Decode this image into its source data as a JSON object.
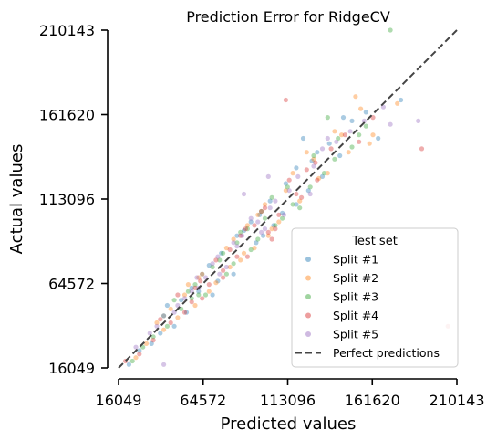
{
  "chart_data": {
    "type": "scatter",
    "title": "Prediction Error for RidgeCV",
    "xlabel": "Predicted values",
    "ylabel": "Actual values",
    "xlim": [
      16049,
      210143
    ],
    "ylim": [
      16049,
      210143
    ],
    "xticks": [
      "16049",
      "64572",
      "113096",
      "161620",
      "210143"
    ],
    "yticks": [
      "16049",
      "64572",
      "113096",
      "161620",
      "210143"
    ],
    "legend": {
      "title": "Test set",
      "placement": "lower-right",
      "entries": [
        "Split #1",
        "Split #2",
        "Split #3",
        "Split #4",
        "Split #5",
        "Perfect predictions"
      ]
    },
    "reference_line": {
      "name": "Perfect predictions",
      "style": "dashed",
      "color": "#444444",
      "points": [
        [
          16049,
          16049
        ],
        [
          210143,
          210143
        ]
      ]
    },
    "series": [
      {
        "name": "Split #1",
        "color": "#1f77b4",
        "points": [
          [
            62000,
            60000
          ],
          [
            75000,
            82000
          ],
          [
            88000,
            95000
          ],
          [
            97000,
            104000
          ],
          [
            105000,
            98000
          ],
          [
            112000,
            122000
          ],
          [
            118000,
            131000
          ],
          [
            125000,
            118000
          ],
          [
            130000,
            140000
          ],
          [
            137000,
            145000
          ],
          [
            143000,
            138000
          ],
          [
            150000,
            158000
          ],
          [
            158000,
            163000
          ],
          [
            165000,
            148000
          ],
          [
            178000,
            170000
          ],
          [
            122000,
            148000
          ],
          [
            127000,
            135000
          ],
          [
            82000,
            70000
          ],
          [
            70000,
            58000
          ],
          [
            55000,
            48000
          ],
          [
            48000,
            40000
          ],
          [
            35000,
            30000
          ],
          [
            28000,
            26000
          ],
          [
            22000,
            18000
          ],
          [
            95000,
            88000
          ],
          [
            103000,
            112000
          ],
          [
            68000,
            75000
          ],
          [
            58000,
            62000
          ],
          [
            40000,
            36000
          ],
          [
            84000,
            92000
          ],
          [
            110000,
            105000
          ],
          [
            92000,
            100000
          ],
          [
            145000,
            160000
          ],
          [
            133000,
            126000
          ],
          [
            118000,
            110000
          ],
          [
            73000,
            66000
          ],
          [
            64000,
            70000
          ],
          [
            52000,
            55000
          ],
          [
            44000,
            52000
          ],
          [
            99000,
            92000
          ]
        ]
      },
      {
        "name": "Split #2",
        "color": "#ff7f0e",
        "points": [
          [
            64000,
            70000
          ],
          [
            78000,
            85000
          ],
          [
            90000,
            98000
          ],
          [
            100000,
            110000
          ],
          [
            108000,
            100000
          ],
          [
            116000,
            128000
          ],
          [
            124000,
            140000
          ],
          [
            131000,
            125000
          ],
          [
            140000,
            152000
          ],
          [
            148000,
            140000
          ],
          [
            155000,
            165000
          ],
          [
            152000,
            172000
          ],
          [
            162000,
            150000
          ],
          [
            176000,
            168000
          ],
          [
            102000,
            92000
          ],
          [
            86000,
            78000
          ],
          [
            72000,
            65000
          ],
          [
            60000,
            52000
          ],
          [
            50000,
            45000
          ],
          [
            42000,
            38000
          ],
          [
            32000,
            30000
          ],
          [
            26000,
            22000
          ],
          [
            112000,
            118000
          ],
          [
            96000,
            104000
          ],
          [
            82000,
            90000
          ],
          [
            68000,
            60000
          ],
          [
            56000,
            64000
          ],
          [
            46000,
            50000
          ],
          [
            120000,
            112000
          ],
          [
            136000,
            128000
          ],
          [
            144000,
            150000
          ],
          [
            128000,
            136000
          ],
          [
            94000,
            85000
          ],
          [
            80000,
            74000
          ],
          [
            62000,
            68000
          ],
          [
            104000,
            96000
          ],
          [
            88000,
            82000
          ],
          [
            54000,
            58000
          ],
          [
            38000,
            42000
          ],
          [
            160000,
            145000
          ]
        ]
      },
      {
        "name": "Split #3",
        "color": "#2ca02c",
        "points": [
          [
            60000,
            64000
          ],
          [
            74000,
            78000
          ],
          [
            86000,
            94000
          ],
          [
            96000,
            90000
          ],
          [
            104000,
            114000
          ],
          [
            113000,
            120000
          ],
          [
            120000,
            108000
          ],
          [
            128000,
            138000
          ],
          [
            134000,
            128000
          ],
          [
            142000,
            148000
          ],
          [
            150000,
            143000
          ],
          [
            158000,
            155000
          ],
          [
            136000,
            160000
          ],
          [
            172000,
            210143
          ],
          [
            110000,
            102000
          ],
          [
            92000,
            84000
          ],
          [
            78000,
            70000
          ],
          [
            66000,
            58000
          ],
          [
            52000,
            50000
          ],
          [
            44000,
            40000
          ],
          [
            30000,
            28000
          ],
          [
            24000,
            20000
          ],
          [
            98000,
            106000
          ],
          [
            84000,
            88000
          ],
          [
            70000,
            74000
          ],
          [
            58000,
            56000
          ],
          [
            48000,
            55000
          ],
          [
            36000,
            34000
          ],
          [
            116000,
            110000
          ],
          [
            126000,
            120000
          ],
          [
            140000,
            136000
          ],
          [
            106000,
            98000
          ],
          [
            90000,
            96000
          ],
          [
            76000,
            82000
          ],
          [
            62000,
            58000
          ],
          [
            100000,
            102000
          ],
          [
            82000,
            76000
          ],
          [
            56000,
            60000
          ],
          [
            42000,
            46000
          ],
          [
            154000,
            150000
          ]
        ]
      },
      {
        "name": "Split #4",
        "color": "#d62728",
        "points": [
          [
            63000,
            66000
          ],
          [
            76000,
            72000
          ],
          [
            89000,
            96000
          ],
          [
            98000,
            106000
          ],
          [
            106000,
            96000
          ],
          [
            114000,
            124000
          ],
          [
            121000,
            114000
          ],
          [
            129000,
            134000
          ],
          [
            138000,
            142000
          ],
          [
            146000,
            150000
          ],
          [
            154000,
            146000
          ],
          [
            162000,
            160000
          ],
          [
            112000,
            170000
          ],
          [
            190000,
            142000
          ],
          [
            205000,
            40000
          ],
          [
            104000,
            90000
          ],
          [
            90000,
            80000
          ],
          [
            76000,
            68000
          ],
          [
            64000,
            56000
          ],
          [
            54000,
            48000
          ],
          [
            46000,
            42000
          ],
          [
            36000,
            32000
          ],
          [
            28000,
            24000
          ],
          [
            20000,
            20000
          ],
          [
            100000,
            108000
          ],
          [
            86000,
            92000
          ],
          [
            72000,
            78000
          ],
          [
            60000,
            62000
          ],
          [
            50000,
            58000
          ],
          [
            40000,
            44000
          ],
          [
            118000,
            116000
          ],
          [
            130000,
            124000
          ],
          [
            108000,
            104000
          ],
          [
            94000,
            98000
          ],
          [
            80000,
            84000
          ],
          [
            68000,
            64000
          ],
          [
            102000,
            94000
          ],
          [
            84000,
            80000
          ],
          [
            58000,
            54000
          ],
          [
            124000,
            130000
          ]
        ]
      },
      {
        "name": "Split #5",
        "color": "#9467bd",
        "points": [
          [
            61000,
            68000
          ],
          [
            73000,
            80000
          ],
          [
            87000,
            92000
          ],
          [
            96000,
            100000
          ],
          [
            103000,
            108000
          ],
          [
            111000,
            104000
          ],
          [
            119000,
            126000
          ],
          [
            126000,
            116000
          ],
          [
            133000,
            142000
          ],
          [
            141000,
            146000
          ],
          [
            149000,
            152000
          ],
          [
            157000,
            158000
          ],
          [
            168000,
            166000
          ],
          [
            172000,
            156000
          ],
          [
            188000,
            158000
          ],
          [
            102000,
            126000
          ],
          [
            88000,
            116000
          ],
          [
            74000,
            70000
          ],
          [
            62000,
            62000
          ],
          [
            50000,
            52000
          ],
          [
            42000,
            46000
          ],
          [
            34000,
            36000
          ],
          [
            26000,
            28000
          ],
          [
            42000,
            18000
          ],
          [
            98000,
            94000
          ],
          [
            84000,
            86000
          ],
          [
            70000,
            76000
          ],
          [
            58000,
            60000
          ],
          [
            48000,
            48000
          ],
          [
            38000,
            40000
          ],
          [
            114000,
            118000
          ],
          [
            128000,
            132000
          ],
          [
            106000,
            112000
          ],
          [
            92000,
            102000
          ],
          [
            78000,
            74000
          ],
          [
            66000,
            68000
          ],
          [
            100000,
            96000
          ],
          [
            82000,
            88000
          ],
          [
            54000,
            56000
          ],
          [
            136000,
            148000
          ]
        ]
      }
    ]
  }
}
